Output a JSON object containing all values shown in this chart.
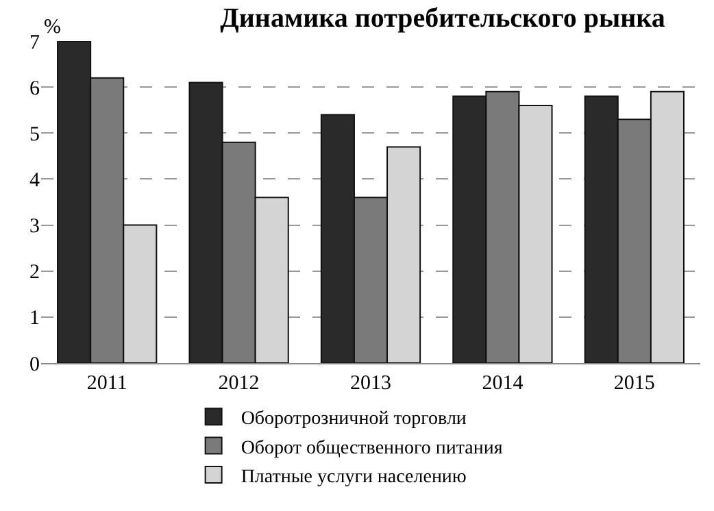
{
  "chart_data": {
    "type": "bar",
    "title": "Динамика потребительского рынка",
    "ylabel": "%",
    "categories": [
      "2011",
      "2012",
      "2013",
      "2014",
      "2015"
    ],
    "series": [
      {
        "name": "Оборотрозничной торговли",
        "color": "#2a2a2a",
        "values": [
          7.0,
          6.1,
          5.4,
          5.8,
          5.8
        ]
      },
      {
        "name": "Оборот общественного питания",
        "color": "#7a7a7a",
        "values": [
          6.2,
          4.8,
          3.6,
          5.9,
          5.3
        ]
      },
      {
        "name": "Платные услуги населению",
        "color": "#d4d4d4",
        "values": [
          3.0,
          3.6,
          4.7,
          5.6,
          5.9
        ]
      }
    ],
    "ylim": [
      0,
      7
    ],
    "yticks": [
      0,
      1,
      2,
      3,
      4,
      5,
      6,
      7
    ],
    "grid": "y",
    "legend": "bottom"
  }
}
